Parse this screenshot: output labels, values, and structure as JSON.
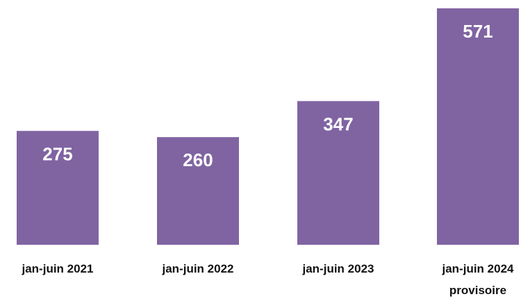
{
  "chart_data": {
    "type": "bar",
    "categories": [
      [
        "jan-juin 2021"
      ],
      [
        "jan-juin 2022"
      ],
      [
        "jan-juin 2023"
      ],
      [
        "jan-juin 2024",
        "provisoire"
      ]
    ],
    "values": [
      275,
      260,
      347,
      571
    ],
    "title": "",
    "xlabel": "",
    "ylabel": "",
    "ylim": [
      0,
      600
    ],
    "grid": false,
    "legend": "none",
    "bar_color": "#8064A2",
    "value_label_color": "#FFFFFF"
  }
}
